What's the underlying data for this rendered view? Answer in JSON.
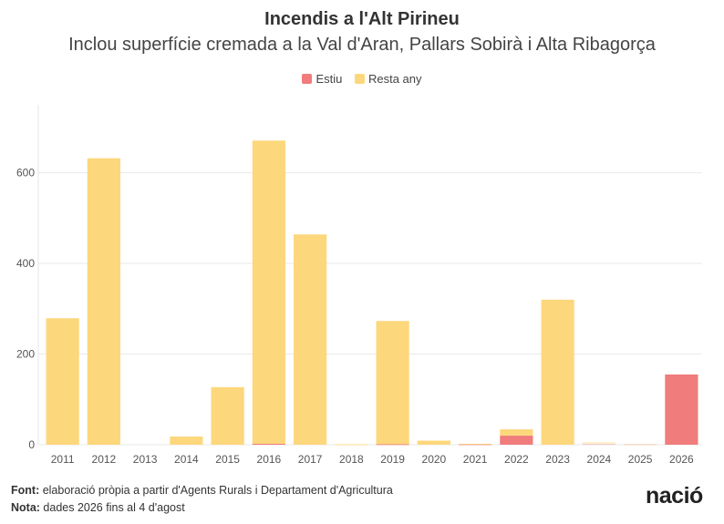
{
  "chart_data": {
    "type": "bar",
    "title": "Incendis a l'Alt Pirineu",
    "subtitle": "Inclou superfície cremada a la Val d'Aran, Pallars Sobirà i Alta Ribagorça",
    "categories": [
      "2011",
      "2012",
      "2013",
      "2014",
      "2015",
      "2016",
      "2017",
      "2018",
      "2019",
      "2020",
      "2021",
      "2022",
      "2023",
      "2024",
      "2025",
      "2026"
    ],
    "series": [
      {
        "name": "Estiu",
        "color": "#F07C7C",
        "values": [
          0,
          0,
          0,
          0,
          0,
          2,
          0,
          0,
          1,
          0,
          1,
          20,
          0,
          2,
          1,
          155
        ]
      },
      {
        "name": "Resta any",
        "color": "#FDD77C",
        "values": [
          279,
          632,
          0,
          18,
          127,
          669,
          464,
          1,
          272,
          9,
          1,
          14,
          320,
          4,
          1,
          0
        ]
      }
    ],
    "stacked": true,
    "faded_categories": [
      "2024",
      "2025"
    ],
    "xlabel": "",
    "ylabel": "",
    "ylim": [
      0,
      750
    ],
    "yticks": [
      0,
      200,
      400,
      600
    ],
    "grid": true,
    "legend_position": "top-center"
  },
  "footer": {
    "source_label": "Font:",
    "source_text": " elaboració pròpia a partir d'Agents Rurals i Departament d'Agricultura",
    "note_label": "Nota:",
    "note_text": " dades 2026 fins al 4 d'agost"
  },
  "logo": {
    "text": "nació"
  }
}
